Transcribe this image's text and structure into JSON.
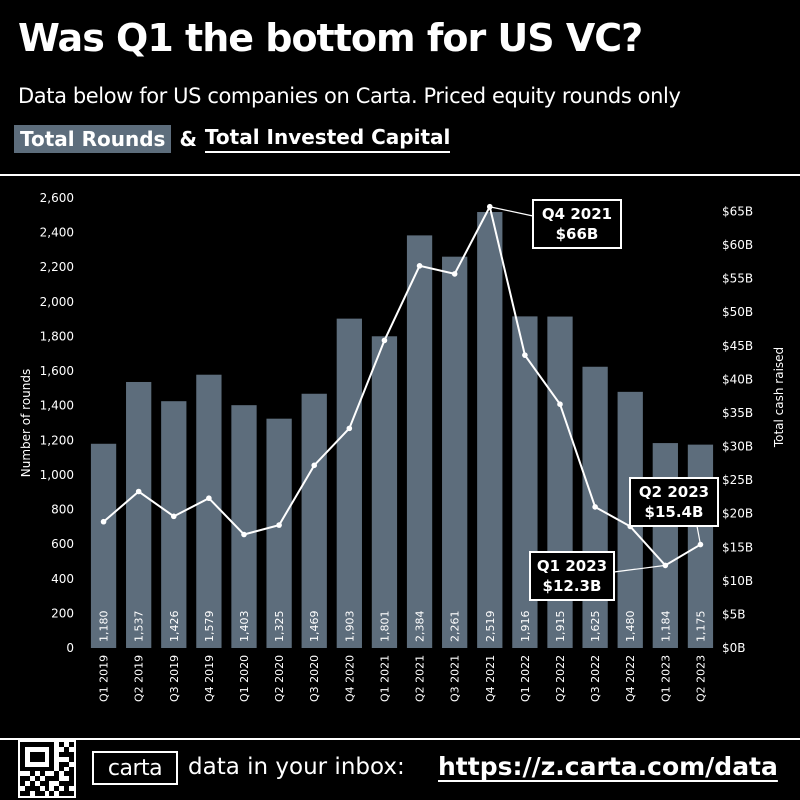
{
  "header": {
    "title": "Was Q1 the bottom for US VC?",
    "subtitle": "Data below for US companies on Carta. Priced equity rounds only",
    "legend_rounds": "Total Rounds",
    "legend_amp": "&",
    "legend_capital": "Total Invested Capital"
  },
  "colors": {
    "bar": "#5d6d7c",
    "line": "#ffffff",
    "background": "#000000"
  },
  "chart_data": {
    "type": "bar",
    "categories": [
      "Q1 2019",
      "Q2 2019",
      "Q3 2019",
      "Q4 2019",
      "Q1 2020",
      "Q2 2020",
      "Q3 2020",
      "Q4 2020",
      "Q1 2021",
      "Q2 2021",
      "Q3 2021",
      "Q4 2021",
      "Q1 2022",
      "Q2 2022",
      "Q3 2022",
      "Q4 2022",
      "Q1 2023",
      "Q2 2023"
    ],
    "series": [
      {
        "name": "Total Rounds",
        "type": "bar",
        "axis": "left",
        "values": [
          1180,
          1537,
          1426,
          1579,
          1403,
          1325,
          1469,
          1903,
          1801,
          2384,
          2261,
          2519,
          1916,
          1915,
          1625,
          1480,
          1184,
          1175
        ],
        "labels": [
          "1,180",
          "1,537",
          "1,426",
          "1,579",
          "1,403",
          "1,325",
          "1,469",
          "1,903",
          "1,801",
          "2,384",
          "2,261",
          "2,519",
          "1,916",
          "1,915",
          "1,625",
          "1,480",
          "1,184",
          "1,175"
        ]
      },
      {
        "name": "Total Invested Capital",
        "type": "line",
        "axis": "right",
        "values": [
          18.8,
          23.3,
          19.6,
          22.3,
          16.9,
          18.3,
          27.2,
          32.7,
          45.8,
          56.9,
          55.7,
          65.7,
          43.6,
          36.3,
          21.0,
          18.1,
          12.3,
          15.4
        ]
      }
    ],
    "ylabel": "Number of rounds",
    "y2label": "Total cash raised",
    "ylim": [
      0,
      2600
    ],
    "y2lim": [
      0,
      67
    ],
    "yticks": [
      0,
      200,
      400,
      600,
      800,
      1000,
      1200,
      1400,
      1600,
      1800,
      2000,
      2200,
      2400,
      2600
    ],
    "ytick_labels": [
      "0",
      "200",
      "400",
      "600",
      "800",
      "1,000",
      "1,200",
      "1,400",
      "1,600",
      "1,800",
      "2,000",
      "2,200",
      "2,400",
      "2,600"
    ],
    "y2ticks": [
      0,
      5,
      10,
      15,
      20,
      25,
      30,
      35,
      40,
      45,
      50,
      55,
      60,
      65
    ],
    "y2tick_labels": [
      "$0B",
      "$5B",
      "$10B",
      "$15B",
      "$20B",
      "$25B",
      "$30B",
      "$35B",
      "$40B",
      "$45B",
      "$50B",
      "$55B",
      "$60B",
      "$65B"
    ],
    "annotations": [
      {
        "category": "Q4 2021",
        "lines": [
          "Q4 2021",
          "$66B"
        ]
      },
      {
        "category": "Q2 2023",
        "lines": [
          "Q2 2023",
          "$15.4B"
        ]
      },
      {
        "category": "Q1 2023",
        "lines": [
          "Q1 2023",
          "$12.3B"
        ]
      }
    ]
  },
  "footer": {
    "logo_text": "carta",
    "text": "data in your inbox:",
    "link": "https://z.carta.com/data"
  }
}
